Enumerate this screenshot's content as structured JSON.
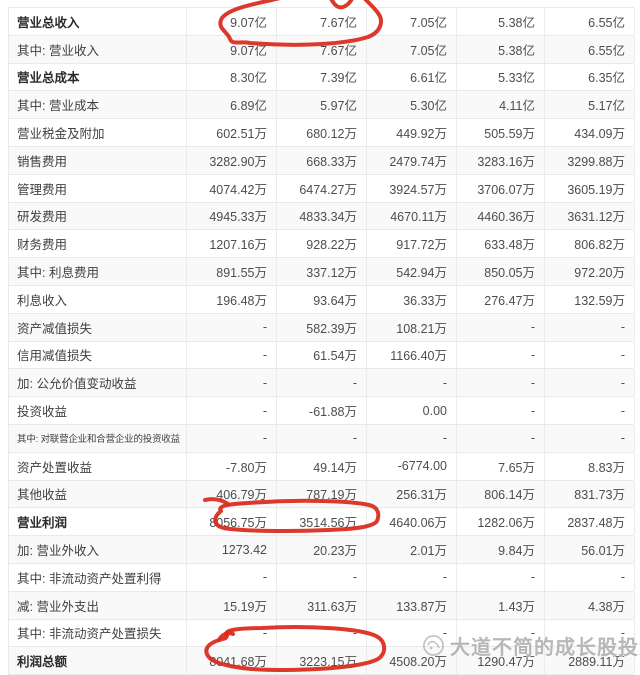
{
  "page": {
    "background": "#ffffff"
  },
  "table": {
    "description_visible_rows": 24,
    "rows": [
      {
        "label": "营业总收入",
        "bold": true,
        "values": [
          "9.07亿",
          "7.67亿",
          "7.05亿",
          "5.38亿",
          "6.55亿"
        ]
      },
      {
        "label": "其中: 营业收入",
        "bold": false,
        "values": [
          "9.07亿",
          "7.67亿",
          "7.05亿",
          "5.38亿",
          "6.55亿"
        ]
      },
      {
        "label": "营业总成本",
        "bold": true,
        "values": [
          "8.30亿",
          "7.39亿",
          "6.61亿",
          "5.33亿",
          "6.35亿"
        ]
      },
      {
        "label": "其中: 营业成本",
        "bold": false,
        "values": [
          "6.89亿",
          "5.97亿",
          "5.30亿",
          "4.11亿",
          "5.17亿"
        ]
      },
      {
        "label": "营业税金及附加",
        "bold": false,
        "values": [
          "602.51万",
          "680.12万",
          "449.92万",
          "505.59万",
          "434.09万"
        ]
      },
      {
        "label": "销售费用",
        "bold": false,
        "values": [
          "3282.90万",
          "668.33万",
          "2479.74万",
          "3283.16万",
          "3299.88万"
        ]
      },
      {
        "label": "管理费用",
        "bold": false,
        "values": [
          "4074.42万",
          "6474.27万",
          "3924.57万",
          "3706.07万",
          "3605.19万"
        ]
      },
      {
        "label": "研发费用",
        "bold": false,
        "values": [
          "4945.33万",
          "4833.34万",
          "4670.11万",
          "4460.36万",
          "3631.12万"
        ]
      },
      {
        "label": "财务费用",
        "bold": false,
        "values": [
          "1207.16万",
          "928.22万",
          "917.72万",
          "633.48万",
          "806.82万"
        ]
      },
      {
        "label": "其中: 利息费用",
        "bold": false,
        "values": [
          "891.55万",
          "337.12万",
          "542.94万",
          "850.05万",
          "972.20万"
        ]
      },
      {
        "label": "利息收入",
        "bold": false,
        "values": [
          "196.48万",
          "93.64万",
          "36.33万",
          "276.47万",
          "132.59万"
        ]
      },
      {
        "label": "资产减值损失",
        "bold": false,
        "values": [
          "-",
          "582.39万",
          "108.21万",
          "-",
          "-"
        ]
      },
      {
        "label": "信用减值损失",
        "bold": false,
        "values": [
          "-",
          "61.54万",
          "1166.40万",
          "-",
          "-"
        ]
      },
      {
        "label": "加: 公允价值变动收益",
        "bold": false,
        "values": [
          "-",
          "-",
          "-",
          "-",
          "-"
        ]
      },
      {
        "label": "投资收益",
        "bold": false,
        "values": [
          "-",
          "-61.88万",
          "0.00",
          "-",
          "-"
        ]
      },
      {
        "label": "其中: 对联营企业和合营企业的投资收益",
        "bold": false,
        "values": [
          "-",
          "-",
          "-",
          "-",
          "-"
        ]
      },
      {
        "label": "资产处置收益",
        "bold": false,
        "values": [
          "-7.80万",
          "49.14万",
          "-6774.00",
          "7.65万",
          "8.83万"
        ]
      },
      {
        "label": "其他收益",
        "bold": false,
        "values": [
          "406.79万",
          "787.19万",
          "256.31万",
          "806.14万",
          "831.73万"
        ]
      },
      {
        "label": "营业利润",
        "bold": true,
        "values": [
          "8056.75万",
          "3514.56万",
          "4640.06万",
          "1282.06万",
          "2837.48万"
        ]
      },
      {
        "label": "加: 营业外收入",
        "bold": false,
        "values": [
          "1273.42",
          "20.23万",
          "2.01万",
          "9.84万",
          "56.01万"
        ]
      },
      {
        "label": "其中: 非流动资产处置利得",
        "bold": false,
        "values": [
          "-",
          "-",
          "-",
          "-",
          "-"
        ]
      },
      {
        "label": "减: 营业外支出",
        "bold": false,
        "values": [
          "15.19万",
          "311.63万",
          "133.87万",
          "1.43万",
          "4.38万"
        ]
      },
      {
        "label": "其中: 非流动资产处置损失",
        "bold": false,
        "values": [
          "-",
          "-",
          "-",
          "-",
          "-"
        ]
      },
      {
        "label": "利润总额",
        "bold": true,
        "values": [
          "8041.68万",
          "3223.15万",
          "4508.20万",
          "1290.47万",
          "2889.11万"
        ]
      }
    ]
  },
  "annotations": {
    "color": "#d92a1c",
    "circled_groups": [
      {
        "row": "营业总收入",
        "values": [
          "9.07亿",
          "7.67亿"
        ]
      },
      {
        "row": "营业利润",
        "values": [
          "8056.75万",
          "3514.56万"
        ]
      },
      {
        "row": "利润总额",
        "values": [
          "8041.68万",
          "3223.15万"
        ]
      }
    ]
  },
  "watermark": {
    "text": "大道不简的成长股投资",
    "color": "#7d7d7d"
  }
}
